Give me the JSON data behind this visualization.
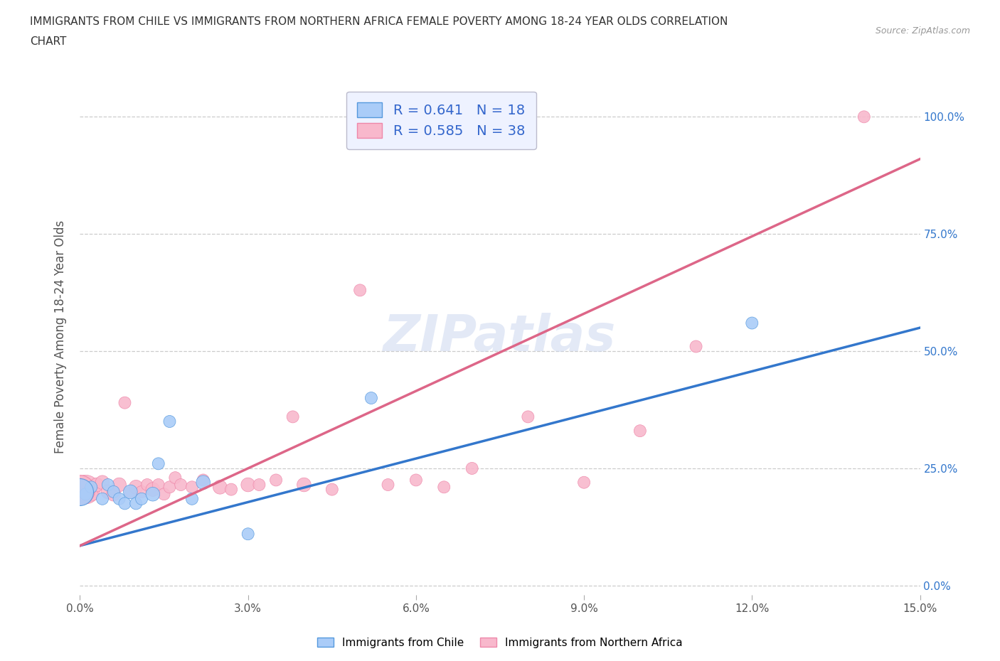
{
  "title": "IMMIGRANTS FROM CHILE VS IMMIGRANTS FROM NORTHERN AFRICA FEMALE POVERTY AMONG 18-24 YEAR OLDS CORRELATION\nCHART",
  "source_text": "Source: ZipAtlas.com",
  "ylabel": "Female Poverty Among 18-24 Year Olds",
  "xlim": [
    0.0,
    0.15
  ],
  "ylim": [
    -0.02,
    1.08
  ],
  "x_ticks": [
    0.0,
    0.03,
    0.06,
    0.09,
    0.12,
    0.15
  ],
  "x_tick_labels": [
    "0.0%",
    "3.0%",
    "6.0%",
    "9.0%",
    "12.0%",
    "15.0%"
  ],
  "y_ticks": [
    0.0,
    0.25,
    0.5,
    0.75,
    1.0
  ],
  "y_tick_labels": [
    "0.0%",
    "25.0%",
    "50.0%",
    "75.0%",
    "100.0%"
  ],
  "watermark": "ZIPatlas",
  "chile_color": "#aaccf8",
  "chile_edge_color": "#5599dd",
  "chile_line_color": "#3377cc",
  "n_africa_color": "#f8b8cc",
  "n_africa_edge_color": "#ee88aa",
  "n_africa_line_color": "#dd6688",
  "chile_R": 0.641,
  "chile_N": 18,
  "n_africa_R": 0.585,
  "n_africa_N": 38,
  "chile_x": [
    0.001,
    0.002,
    0.004,
    0.005,
    0.006,
    0.007,
    0.008,
    0.009,
    0.01,
    0.011,
    0.013,
    0.014,
    0.016,
    0.02,
    0.022,
    0.03,
    0.052,
    0.12
  ],
  "chile_y": [
    0.195,
    0.21,
    0.185,
    0.215,
    0.2,
    0.185,
    0.175,
    0.2,
    0.175,
    0.185,
    0.195,
    0.26,
    0.35,
    0.185,
    0.22,
    0.11,
    0.4,
    0.56
  ],
  "chile_sizes": [
    150,
    150,
    150,
    150,
    150,
    150,
    150,
    200,
    150,
    150,
    200,
    150,
    150,
    150,
    200,
    150,
    150,
    150
  ],
  "n_africa_x": [
    0.001,
    0.002,
    0.003,
    0.004,
    0.005,
    0.006,
    0.007,
    0.008,
    0.009,
    0.01,
    0.011,
    0.012,
    0.013,
    0.014,
    0.015,
    0.016,
    0.017,
    0.018,
    0.02,
    0.022,
    0.025,
    0.027,
    0.03,
    0.032,
    0.035,
    0.038,
    0.04,
    0.045,
    0.05,
    0.055,
    0.06,
    0.065,
    0.07,
    0.08,
    0.09,
    0.1,
    0.11,
    0.14
  ],
  "n_africa_y": [
    0.205,
    0.195,
    0.215,
    0.22,
    0.2,
    0.195,
    0.215,
    0.39,
    0.2,
    0.21,
    0.2,
    0.215,
    0.205,
    0.215,
    0.195,
    0.21,
    0.23,
    0.215,
    0.21,
    0.225,
    0.21,
    0.205,
    0.215,
    0.215,
    0.225,
    0.36,
    0.215,
    0.205,
    0.63,
    0.215,
    0.225,
    0.21,
    0.25,
    0.36,
    0.22,
    0.33,
    0.51,
    1.0
  ],
  "n_africa_sizes": [
    850,
    200,
    200,
    200,
    200,
    200,
    200,
    150,
    150,
    200,
    150,
    150,
    200,
    150,
    150,
    150,
    150,
    150,
    150,
    150,
    200,
    150,
    200,
    150,
    150,
    150,
    200,
    150,
    150,
    150,
    150,
    150,
    150,
    150,
    150,
    150,
    150,
    150
  ],
  "chile_intercept": 0.085,
  "chile_slope": 3.1,
  "n_africa_intercept": 0.085,
  "n_africa_slope": 5.5,
  "legend_facecolor": "#eef2ff",
  "legend_edgecolor": "#bbbbcc"
}
